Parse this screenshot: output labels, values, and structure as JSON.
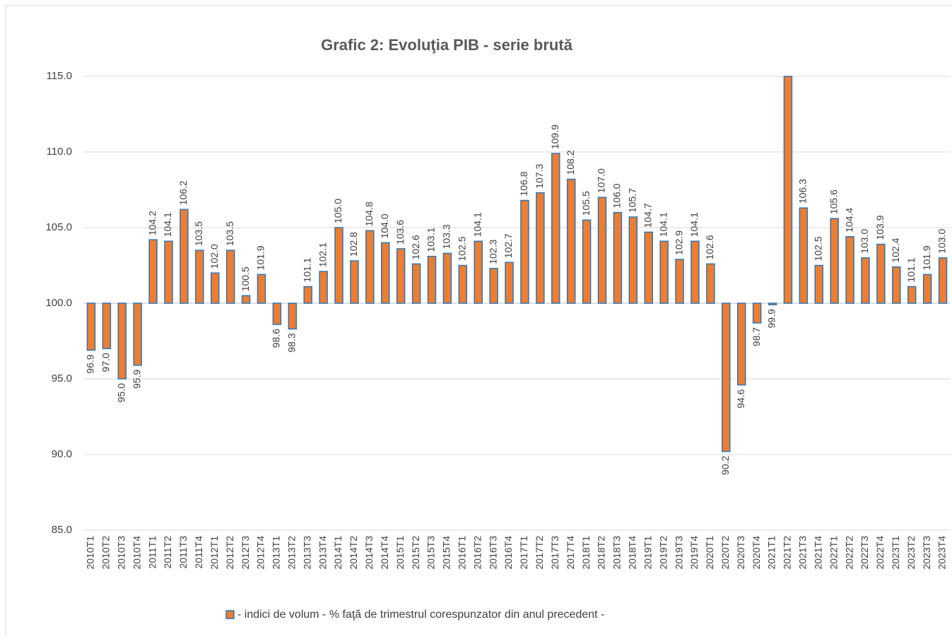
{
  "chart_data": {
    "type": "bar",
    "title": "Grafic 2: Evoluţia PIB - serie brută",
    "categories": [
      "2010T1",
      "2010T2",
      "2010T3",
      "2010T4",
      "2011T1",
      "2011T2",
      "2011T3",
      "2011T4",
      "2012T1",
      "2012T2",
      "2012T3",
      "2012T4",
      "2013T1",
      "2013T2",
      "2013T3",
      "2013T4",
      "2014T1",
      "2014T2",
      "2014T3",
      "2014T4",
      "2015T1",
      "2015T2",
      "2015T3",
      "2015T4",
      "2016T1",
      "2016T2",
      "2016T3",
      "2016T4",
      "2017T1",
      "2017T2",
      "2017T3",
      "2017T4",
      "2018T1",
      "2018T2",
      "2018T3",
      "2018T4",
      "2019T1",
      "2019T2",
      "2019T3",
      "2019T4",
      "2020T1",
      "2020T2",
      "2020T3",
      "2020T4",
      "2021T1",
      "2021T2",
      "2021T3",
      "2021T4",
      "2022T1",
      "2022T2",
      "2022T3",
      "2022T4",
      "2023T1",
      "2023T2",
      "2023T3",
      "2023T4"
    ],
    "series": [
      {
        "name": "- indici de volum - % faţă de trimestrul corespunzator din anul precedent -",
        "color": "#ed7d31",
        "edge_color": "#2e75b6",
        "values": [
          96.9,
          97.0,
          95.0,
          95.9,
          104.2,
          104.1,
          106.2,
          103.5,
          102.0,
          103.5,
          100.5,
          101.9,
          98.6,
          98.3,
          101.1,
          102.1,
          105.0,
          102.8,
          104.8,
          104.0,
          103.6,
          102.6,
          103.1,
          103.3,
          102.5,
          104.1,
          102.3,
          102.7,
          106.8,
          107.3,
          109.9,
          108.2,
          105.5,
          107.0,
          106.0,
          105.7,
          104.7,
          104.1,
          102.9,
          104.1,
          102.6,
          90.2,
          94.6,
          98.7,
          99.9,
          115,
          106.3,
          102.5,
          105.6,
          104.4,
          103.0,
          103.9,
          102.4,
          101.1,
          101.9,
          103.0
        ],
        "value_labels": [
          "96.9",
          "97.0",
          "95.0",
          "95.9",
          "104.2",
          "104.1",
          "106.2",
          "103.5",
          "102.0",
          "103.5",
          "100.5",
          "101.9",
          "98.6",
          "98.3",
          "101.1",
          "102.1",
          "105.0",
          "102.8",
          "104.8",
          "104.0",
          "103.6",
          "102.6",
          "103.1",
          "103.3",
          "102.5",
          "104.1",
          "102.3",
          "102.7",
          "106.8",
          "107.3",
          "109.9",
          "108.2",
          "105.5",
          "107.0",
          "106.0",
          "105.7",
          "104.7",
          "104.1",
          "102.9",
          "104.1",
          "102.6",
          "90.2",
          "94.6",
          "98.7",
          "99.9",
          null,
          "106.3",
          "102.5",
          "105.6",
          "104.4",
          "103.0",
          "103.9",
          "102.4",
          "101.1",
          "101.9",
          "103.0"
        ]
      }
    ],
    "baseline": 100,
    "ylim": [
      85,
      115
    ],
    "yticks": [
      {
        "value": 85,
        "label": "85.0"
      },
      {
        "value": 90,
        "label": "90.0"
      },
      {
        "value": 95,
        "label": "95.0"
      },
      {
        "value": 100,
        "label": "100.0"
      },
      {
        "value": 105,
        "label": "105.0"
      },
      {
        "value": 110,
        "label": "110.0"
      },
      {
        "value": 115,
        "label": "115.0"
      }
    ],
    "grid": true,
    "legend": "bottom"
  }
}
